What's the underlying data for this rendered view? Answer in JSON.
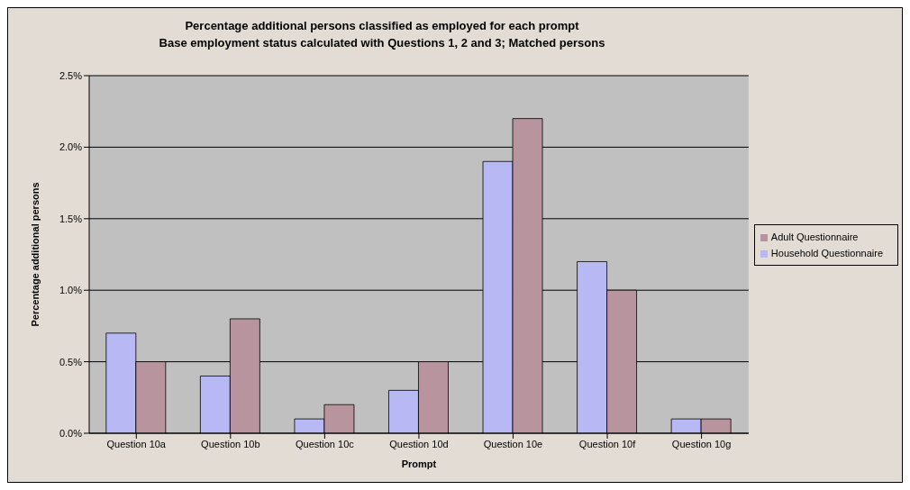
{
  "chart_data": {
    "type": "bar",
    "title": "Percentage additional persons classified as employed for each prompt",
    "subtitle": "Base employment status calculated with Questions 1, 2 and 3; Matched persons",
    "xlabel": "Prompt",
    "ylabel": "Percentage additional persons",
    "categories": [
      "Question 10a",
      "Question 10b",
      "Question 10c",
      "Question 10d",
      "Question 10e",
      "Question 10f",
      "Question 10g"
    ],
    "series": [
      {
        "name": "Household Questionnaire",
        "color": "#b8b8f4",
        "values": [
          0.7,
          0.4,
          0.1,
          0.3,
          1.9,
          1.2,
          0.1
        ]
      },
      {
        "name": "Adult Questionnaire",
        "color": "#b8949f",
        "values": [
          0.5,
          0.8,
          0.2,
          0.5,
          2.2,
          1.0,
          0.1
        ]
      }
    ],
    "ylim": [
      0,
      2.5
    ],
    "yticks": [
      {
        "value": 0,
        "label": "0.0%"
      },
      {
        "value": 0.5,
        "label": "0.5%"
      },
      {
        "value": 1,
        "label": "1.0%"
      },
      {
        "value": 1.5,
        "label": "1.5%"
      },
      {
        "value": 2,
        "label": "2.0%"
      },
      {
        "value": 2.5,
        "label": "2.5%"
      }
    ],
    "grid": "y",
    "legend": "right"
  }
}
